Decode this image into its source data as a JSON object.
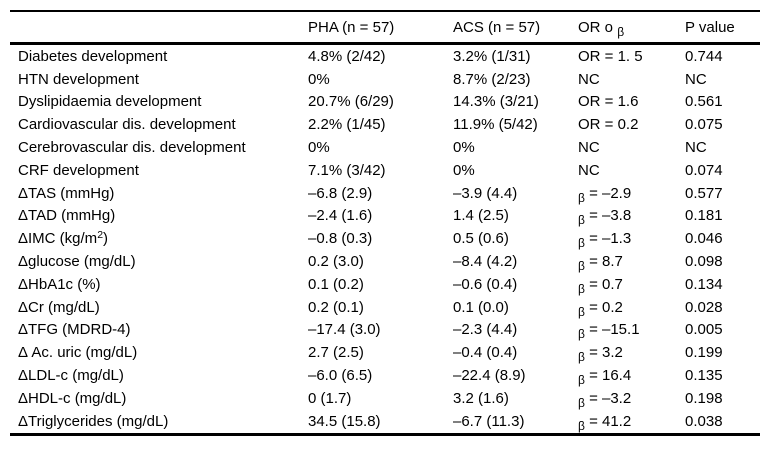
{
  "meta": {
    "background_color": "#ffffff",
    "text_color": "#000000",
    "rule_color": "#000000"
  },
  "table": {
    "headers": [
      "",
      "PHA (n = 57)",
      "ACS (n = 57)",
      "OR o β",
      "P value"
    ],
    "rows": [
      [
        "Diabetes development",
        "4.8% (2/42)",
        "3.2% (1/31)",
        "OR = 1. 5",
        "0.744"
      ],
      [
        "HTN development",
        "0%",
        "8.7% (2/23)",
        "NC",
        "NC"
      ],
      [
        "Dyslipidaemia development",
        "20.7% (6/29)",
        "14.3% (3/21)",
        "OR = 1.6",
        "0.561"
      ],
      [
        "Cardiovascular dis. development",
        "2.2% (1/45)",
        "11.9% (5/42)",
        "OR = 0.2",
        "0.075"
      ],
      [
        "Cerebrovascular dis. development",
        "0%",
        "0%",
        "NC",
        "NC"
      ],
      [
        "CRF development",
        "7.1% (3/42)",
        "0%",
        "NC",
        "0.074"
      ],
      [
        "ΔTAS (mmHg)",
        "–6.8 (2.9)",
        "–3.9 (4.4)",
        "β = –2.9",
        "0.577"
      ],
      [
        "ΔTAD (mmHg)",
        "–2.4 (1.6)",
        "1.4 (2.5)",
        "β = –3.8",
        "0.181"
      ],
      [
        "ΔIMC (kg/m²)",
        "–0.8 (0.3)",
        "0.5 (0.6)",
        "β = –1.3",
        "0.046"
      ],
      [
        "Δglucose (mg/dL)",
        "0.2 (3.0)",
        "–8.4 (4.2)",
        "β = 8.7",
        "0.098"
      ],
      [
        "ΔHbA1c (%)",
        "0.1 (0.2)",
        "–0.6 (0.4)",
        "β = 0.7",
        "0.134"
      ],
      [
        "ΔCr (mg/dL)",
        "0.2 (0.1)",
        "0.1 (0.0)",
        "β = 0.2",
        "0.028"
      ],
      [
        "ΔTFG (MDRD-4)",
        "–17.4 (3.0)",
        "–2.3 (4.4)",
        "β = –15.1",
        "0.005"
      ],
      [
        "Δ Ac. uric (mg/dL)",
        "2.7 (2.5)",
        "–0.4 (0.4)",
        "β = 3.2",
        "0.199"
      ],
      [
        "ΔLDL-c (mg/dL)",
        "–6.0 (6.5)",
        "–22.4 (8.9)",
        "β = 16.4",
        "0.135"
      ],
      [
        "ΔHDL-c (mg/dL)",
        "0 (1.7)",
        "3.2 (1.6)",
        "β = –3.2",
        "0.198"
      ],
      [
        "ΔTriglycerides (mg/dL)",
        "34.5 (15.8)",
        "–6.7 (11.3)",
        "β = 41.2",
        "0.038"
      ]
    ]
  }
}
